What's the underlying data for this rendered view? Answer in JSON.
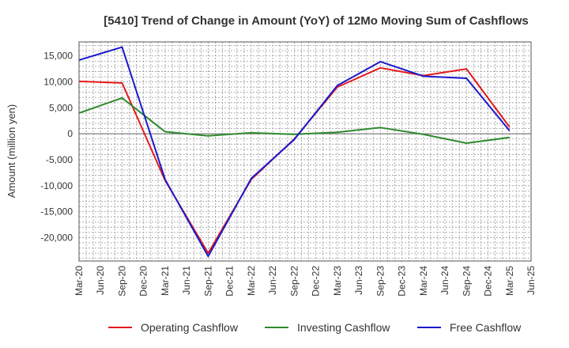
{
  "chart_data": {
    "type": "line",
    "title": "[5410]  Trend of Change in Amount (YoY) of 12Mo Moving Sum of Cashflows",
    "xlabel": "",
    "ylabel": "Amount (million yen)",
    "ylim": [
      -24500,
      17700
    ],
    "yticks": [
      15000,
      10000,
      5000,
      0,
      -5000,
      -10000,
      -15000,
      -20000
    ],
    "ytick_labels": [
      "15,000",
      "10,000",
      "5,000",
      "0",
      "-5,000",
      "-10,000",
      "-15,000",
      "-20,000"
    ],
    "categories": [
      "Mar-20",
      "Jun-20",
      "Sep-20",
      "Dec-20",
      "Mar-21",
      "Jun-21",
      "Sep-21",
      "Dec-21",
      "Mar-22",
      "Jun-22",
      "Sep-22",
      "Dec-22",
      "Mar-23",
      "Jun-23",
      "Sep-23",
      "Dec-23",
      "Mar-24",
      "Jun-24",
      "Sep-24",
      "Dec-24",
      "Mar-25",
      "Jun-25"
    ],
    "grid": true,
    "legend_position": "bottom",
    "series": [
      {
        "name": "Operating Cashflow",
        "color": "#e41a1c",
        "points": [
          [
            0,
            10100
          ],
          [
            2,
            9800
          ],
          [
            4,
            -9000
          ],
          [
            6,
            -23000
          ],
          [
            8,
            -8800
          ],
          [
            10,
            -1000
          ],
          [
            12,
            9000
          ],
          [
            14,
            12700
          ],
          [
            16,
            11200
          ],
          [
            18,
            12500
          ],
          [
            20,
            1300
          ]
        ]
      },
      {
        "name": "Investing Cashflow",
        "color": "#2e8b2e",
        "points": [
          [
            0,
            4000
          ],
          [
            2,
            6900
          ],
          [
            4,
            400
          ],
          [
            6,
            -400
          ],
          [
            8,
            200
          ],
          [
            10,
            -100
          ],
          [
            12,
            300
          ],
          [
            14,
            1200
          ],
          [
            16,
            -100
          ],
          [
            18,
            -1800
          ],
          [
            20,
            -700
          ]
        ]
      },
      {
        "name": "Free Cashflow",
        "color": "#1a1acd",
        "points": [
          [
            0,
            14200
          ],
          [
            2,
            16700
          ],
          [
            4,
            -8800
          ],
          [
            6,
            -23600
          ],
          [
            8,
            -8600
          ],
          [
            10,
            -1100
          ],
          [
            12,
            9300
          ],
          [
            14,
            13900
          ],
          [
            16,
            11100
          ],
          [
            18,
            10700
          ],
          [
            20,
            600
          ]
        ]
      }
    ]
  }
}
